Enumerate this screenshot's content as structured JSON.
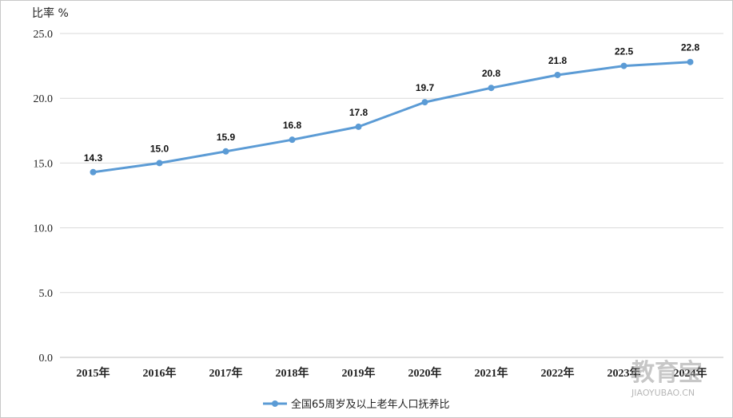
{
  "chart_data": {
    "type": "line",
    "ylabel": "比率 %",
    "xlabel": "",
    "title": "",
    "ylim": [
      0,
      25
    ],
    "yticks": [
      "0.0",
      "5.0",
      "10.0",
      "15.0",
      "20.0",
      "25.0"
    ],
    "categories": [
      "2015年",
      "2016年",
      "2017年",
      "2018年",
      "2019年",
      "2020年",
      "2021年",
      "2022年",
      "2023年",
      "2024年"
    ],
    "series": [
      {
        "name": "全国65周岁及以上老年人口抚养比",
        "values": [
          14.3,
          15.0,
          15.9,
          16.8,
          17.8,
          19.7,
          20.8,
          21.8,
          22.5,
          22.8
        ],
        "labels": [
          "14.3",
          "15.0",
          "15.9",
          "16.8",
          "17.8",
          "19.7",
          "20.8",
          "21.8",
          "22.5",
          "22.8"
        ],
        "color": "#5b9bd5"
      }
    ],
    "grid": true,
    "legend_position": "bottom"
  },
  "watermark": {
    "text": "教育宝",
    "url": "JIAOYUBAO.CN"
  },
  "colors": {
    "line": "#5b9bd5",
    "grid": "#d9d9d9",
    "axis": "#bfbfbf"
  }
}
